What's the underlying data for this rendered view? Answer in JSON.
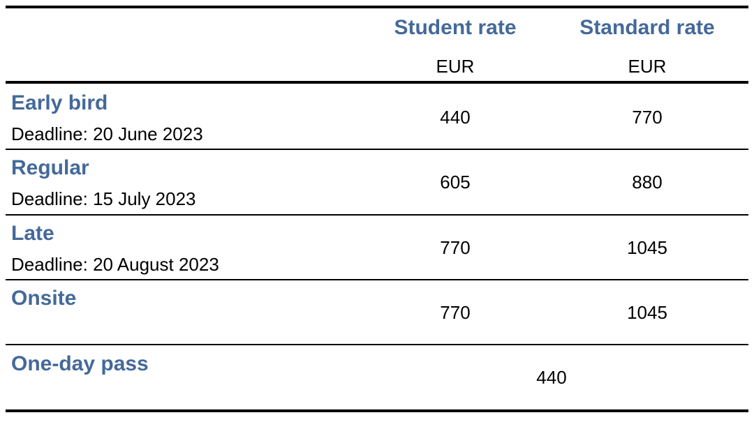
{
  "table": {
    "columns": [
      {
        "title": "Student rate",
        "unit": "EUR"
      },
      {
        "title": "Standard rate",
        "unit": "EUR"
      }
    ],
    "rows": [
      {
        "name": "Early bird",
        "deadline": "Deadline: 20 June 2023",
        "student": 440,
        "standard": 770
      },
      {
        "name": "Regular",
        "deadline": "Deadline: 15 July 2023",
        "student": 605,
        "standard": 880
      },
      {
        "name": "Late",
        "deadline": "Deadline: 20 August 2023",
        "student": 770,
        "standard": 1045
      },
      {
        "name": "Onsite",
        "student": 770,
        "standard": 1045
      }
    ],
    "pass": {
      "name": "One-day pass",
      "price": 440
    }
  }
}
